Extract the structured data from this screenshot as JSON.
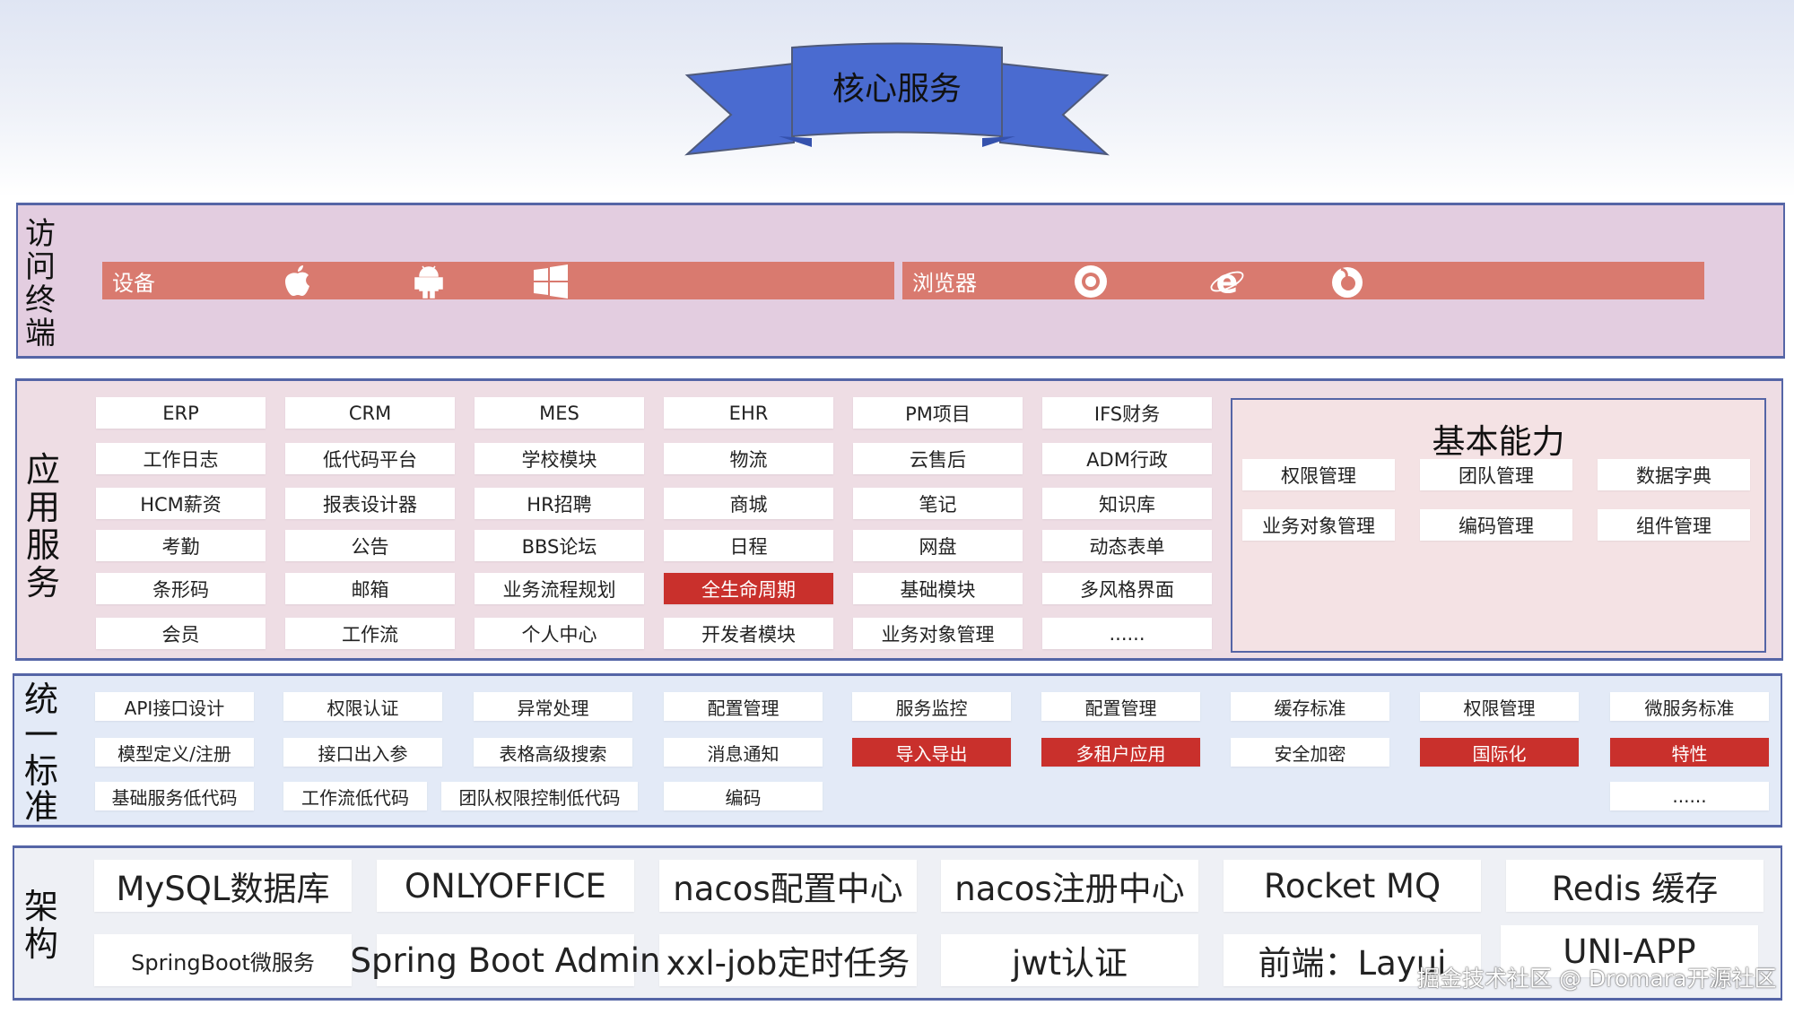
{
  "banner": {
    "title": "核心服务",
    "color": "#4a6bd0"
  },
  "access": {
    "label": "访问终端",
    "device_label": "设备",
    "device_icons": [
      "apple-icon",
      "android-icon",
      "windows-icon"
    ],
    "browser_label": "浏览器",
    "browser_icons": [
      "chrome-icon",
      "ie-icon",
      "firefox-icon"
    ],
    "bar_color": "#d97a6f"
  },
  "apps": {
    "label": "应用服务",
    "rows": [
      [
        "ERP",
        "CRM",
        "MES",
        "EHR",
        "PM项目",
        "IFS财务"
      ],
      [
        "工作日志",
        "低代码平台",
        "学校模块",
        "物流",
        "云售后",
        "ADM行政"
      ],
      [
        "HCM薪资",
        "报表设计器",
        "HR招聘",
        "商城",
        "笔记",
        "知识库"
      ],
      [
        "考勤",
        "公告",
        "BBS论坛",
        "日程",
        "网盘",
        "动态表单"
      ],
      [
        "条形码",
        "邮箱",
        "业务流程规划",
        "全生命周期",
        "基础模块",
        "多风格界面"
      ],
      [
        "会员",
        "工作流",
        "个人中心",
        "开发者模块",
        "业务对象管理",
        "......"
      ]
    ],
    "highlighted": [
      "全生命周期"
    ],
    "basic": {
      "title": "基本能力",
      "rows": [
        [
          "权限管理",
          "团队管理",
          "数据字典"
        ],
        [
          "业务对象管理",
          "编码管理",
          "组件管理"
        ]
      ]
    }
  },
  "standards": {
    "label": "统一标准",
    "rows": [
      [
        "API接口设计",
        "权限认证",
        "异常处理",
        "配置管理",
        "服务监控",
        "配置管理",
        "缓存标准",
        "权限管理",
        "微服务标准"
      ],
      [
        "模型定义/注册",
        "接口出入参",
        "表格高级搜索",
        "消息通知",
        "导入导出",
        "多租户应用",
        "安全加密",
        "国际化",
        "特性"
      ],
      [
        "基础服务低代码",
        "工作流低代码",
        "团队权限控制低代码",
        "编码",
        "......"
      ]
    ],
    "highlighted": [
      "导入导出",
      "多租户应用",
      "国际化",
      "特性"
    ],
    "highlight_color": "#c9302c"
  },
  "arch": {
    "label": "架构",
    "rows": [
      [
        "MySQL数据库",
        "ONLYOFFICE",
        "nacos配置中心",
        "nacos注册中心",
        "Rocket MQ",
        "Redis 缓存"
      ],
      [
        "SpringBoot微服务",
        "Spring Boot Admin",
        "xxl-job定时任务",
        "jwt认证",
        "前端：Layui",
        "UNI-APP"
      ]
    ]
  },
  "watermark": "掘金技术社区 @ Dromara开源社区"
}
